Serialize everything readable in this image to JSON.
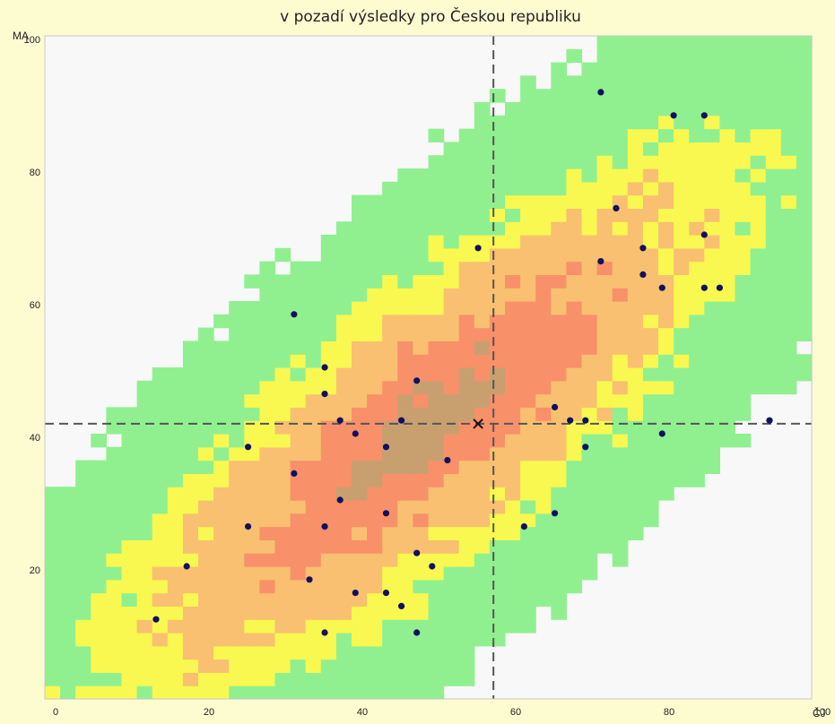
{
  "chart_data": {
    "type": "scatter",
    "title": "v pozadí výsledky pro Českou republiku",
    "xlabel": "ČJ",
    "ylabel": "MA",
    "xlim": [
      0,
      100
    ],
    "ylim": [
      0,
      100
    ],
    "x_ticks": [
      "0",
      "20",
      "40",
      "60",
      "80",
      "100"
    ],
    "y_ticks": [
      "20",
      "40",
      "60",
      "80",
      "100"
    ],
    "background": {
      "type": "heatmap",
      "description_levels": [
        "none",
        "low",
        "medium",
        "high",
        "very-high",
        "peak"
      ],
      "colors": {
        "none": "#f8f8f8",
        "low": "#90f090",
        "medium": "#f8f850",
        "high": "#f8c070",
        "very-high": "#f8906a",
        "peak": "#c8a070"
      }
    },
    "reference_lines": {
      "x": 58.5,
      "y": 41.5,
      "style": "dashed",
      "color": "#555555"
    },
    "mean_marker": {
      "x": 56.5,
      "y": 41.5,
      "symbol": "x"
    },
    "point_color": "#101060",
    "points": [
      [
        72.5,
        91.5
      ],
      [
        82,
        88
      ],
      [
        86,
        88
      ],
      [
        74.5,
        74
      ],
      [
        86,
        70
      ],
      [
        78,
        68
      ],
      [
        56.5,
        68
      ],
      [
        72.5,
        66
      ],
      [
        78,
        64
      ],
      [
        80.5,
        62
      ],
      [
        86,
        62
      ],
      [
        88,
        62
      ],
      [
        32.5,
        58
      ],
      [
        36.5,
        50
      ],
      [
        36.5,
        46
      ],
      [
        48.5,
        48
      ],
      [
        38.5,
        42
      ],
      [
        46.5,
        42
      ],
      [
        66.5,
        44
      ],
      [
        68.5,
        42
      ],
      [
        70.5,
        42
      ],
      [
        94.5,
        42
      ],
      [
        26.5,
        38
      ],
      [
        40.5,
        40
      ],
      [
        44.5,
        38
      ],
      [
        70.5,
        38
      ],
      [
        80.5,
        40
      ],
      [
        32.5,
        34
      ],
      [
        52.5,
        36
      ],
      [
        38.5,
        30
      ],
      [
        26.5,
        26
      ],
      [
        36.5,
        26
      ],
      [
        44.5,
        28
      ],
      [
        62.5,
        26
      ],
      [
        66.5,
        28
      ],
      [
        18.5,
        20
      ],
      [
        34.5,
        18
      ],
      [
        48.5,
        22
      ],
      [
        50.5,
        20
      ],
      [
        40.5,
        16
      ],
      [
        44.5,
        16
      ],
      [
        46.5,
        14
      ],
      [
        14.5,
        12
      ],
      [
        36.5,
        10
      ],
      [
        48.5,
        10
      ]
    ]
  }
}
